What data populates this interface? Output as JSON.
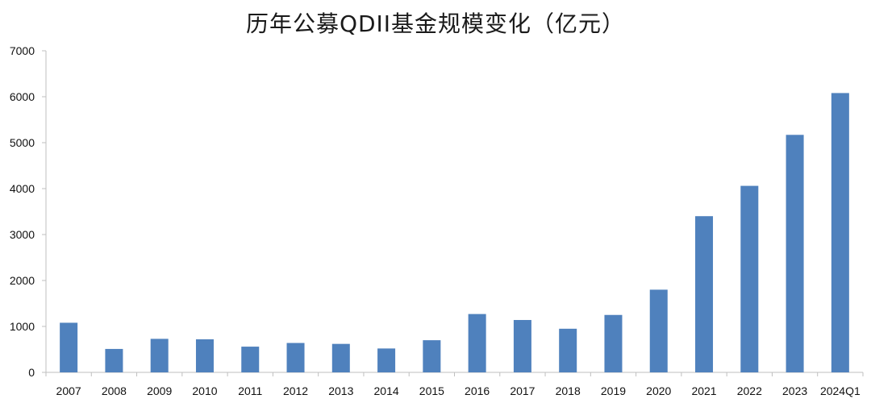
{
  "chart_data": {
    "type": "bar",
    "title": "历年公募QDII基金规模变化（亿元）",
    "categories": [
      "2007",
      "2008",
      "2009",
      "2010",
      "2011",
      "2012",
      "2013",
      "2014",
      "2015",
      "2016",
      "2017",
      "2018",
      "2019",
      "2020",
      "2021",
      "2022",
      "2023",
      "2024Q1"
    ],
    "values": [
      1080,
      510,
      730,
      720,
      560,
      640,
      620,
      520,
      700,
      1270,
      1140,
      950,
      1250,
      1800,
      3400,
      4060,
      5170,
      6080
    ],
    "ylim": [
      0,
      7000
    ],
    "yticks": [
      0,
      1000,
      2000,
      3000,
      4000,
      5000,
      6000,
      7000
    ],
    "xlabel": "",
    "ylabel": "",
    "grid": false,
    "legend": "none",
    "bar_color": "#4f81bd",
    "axis_color": "#bfbfbf"
  }
}
